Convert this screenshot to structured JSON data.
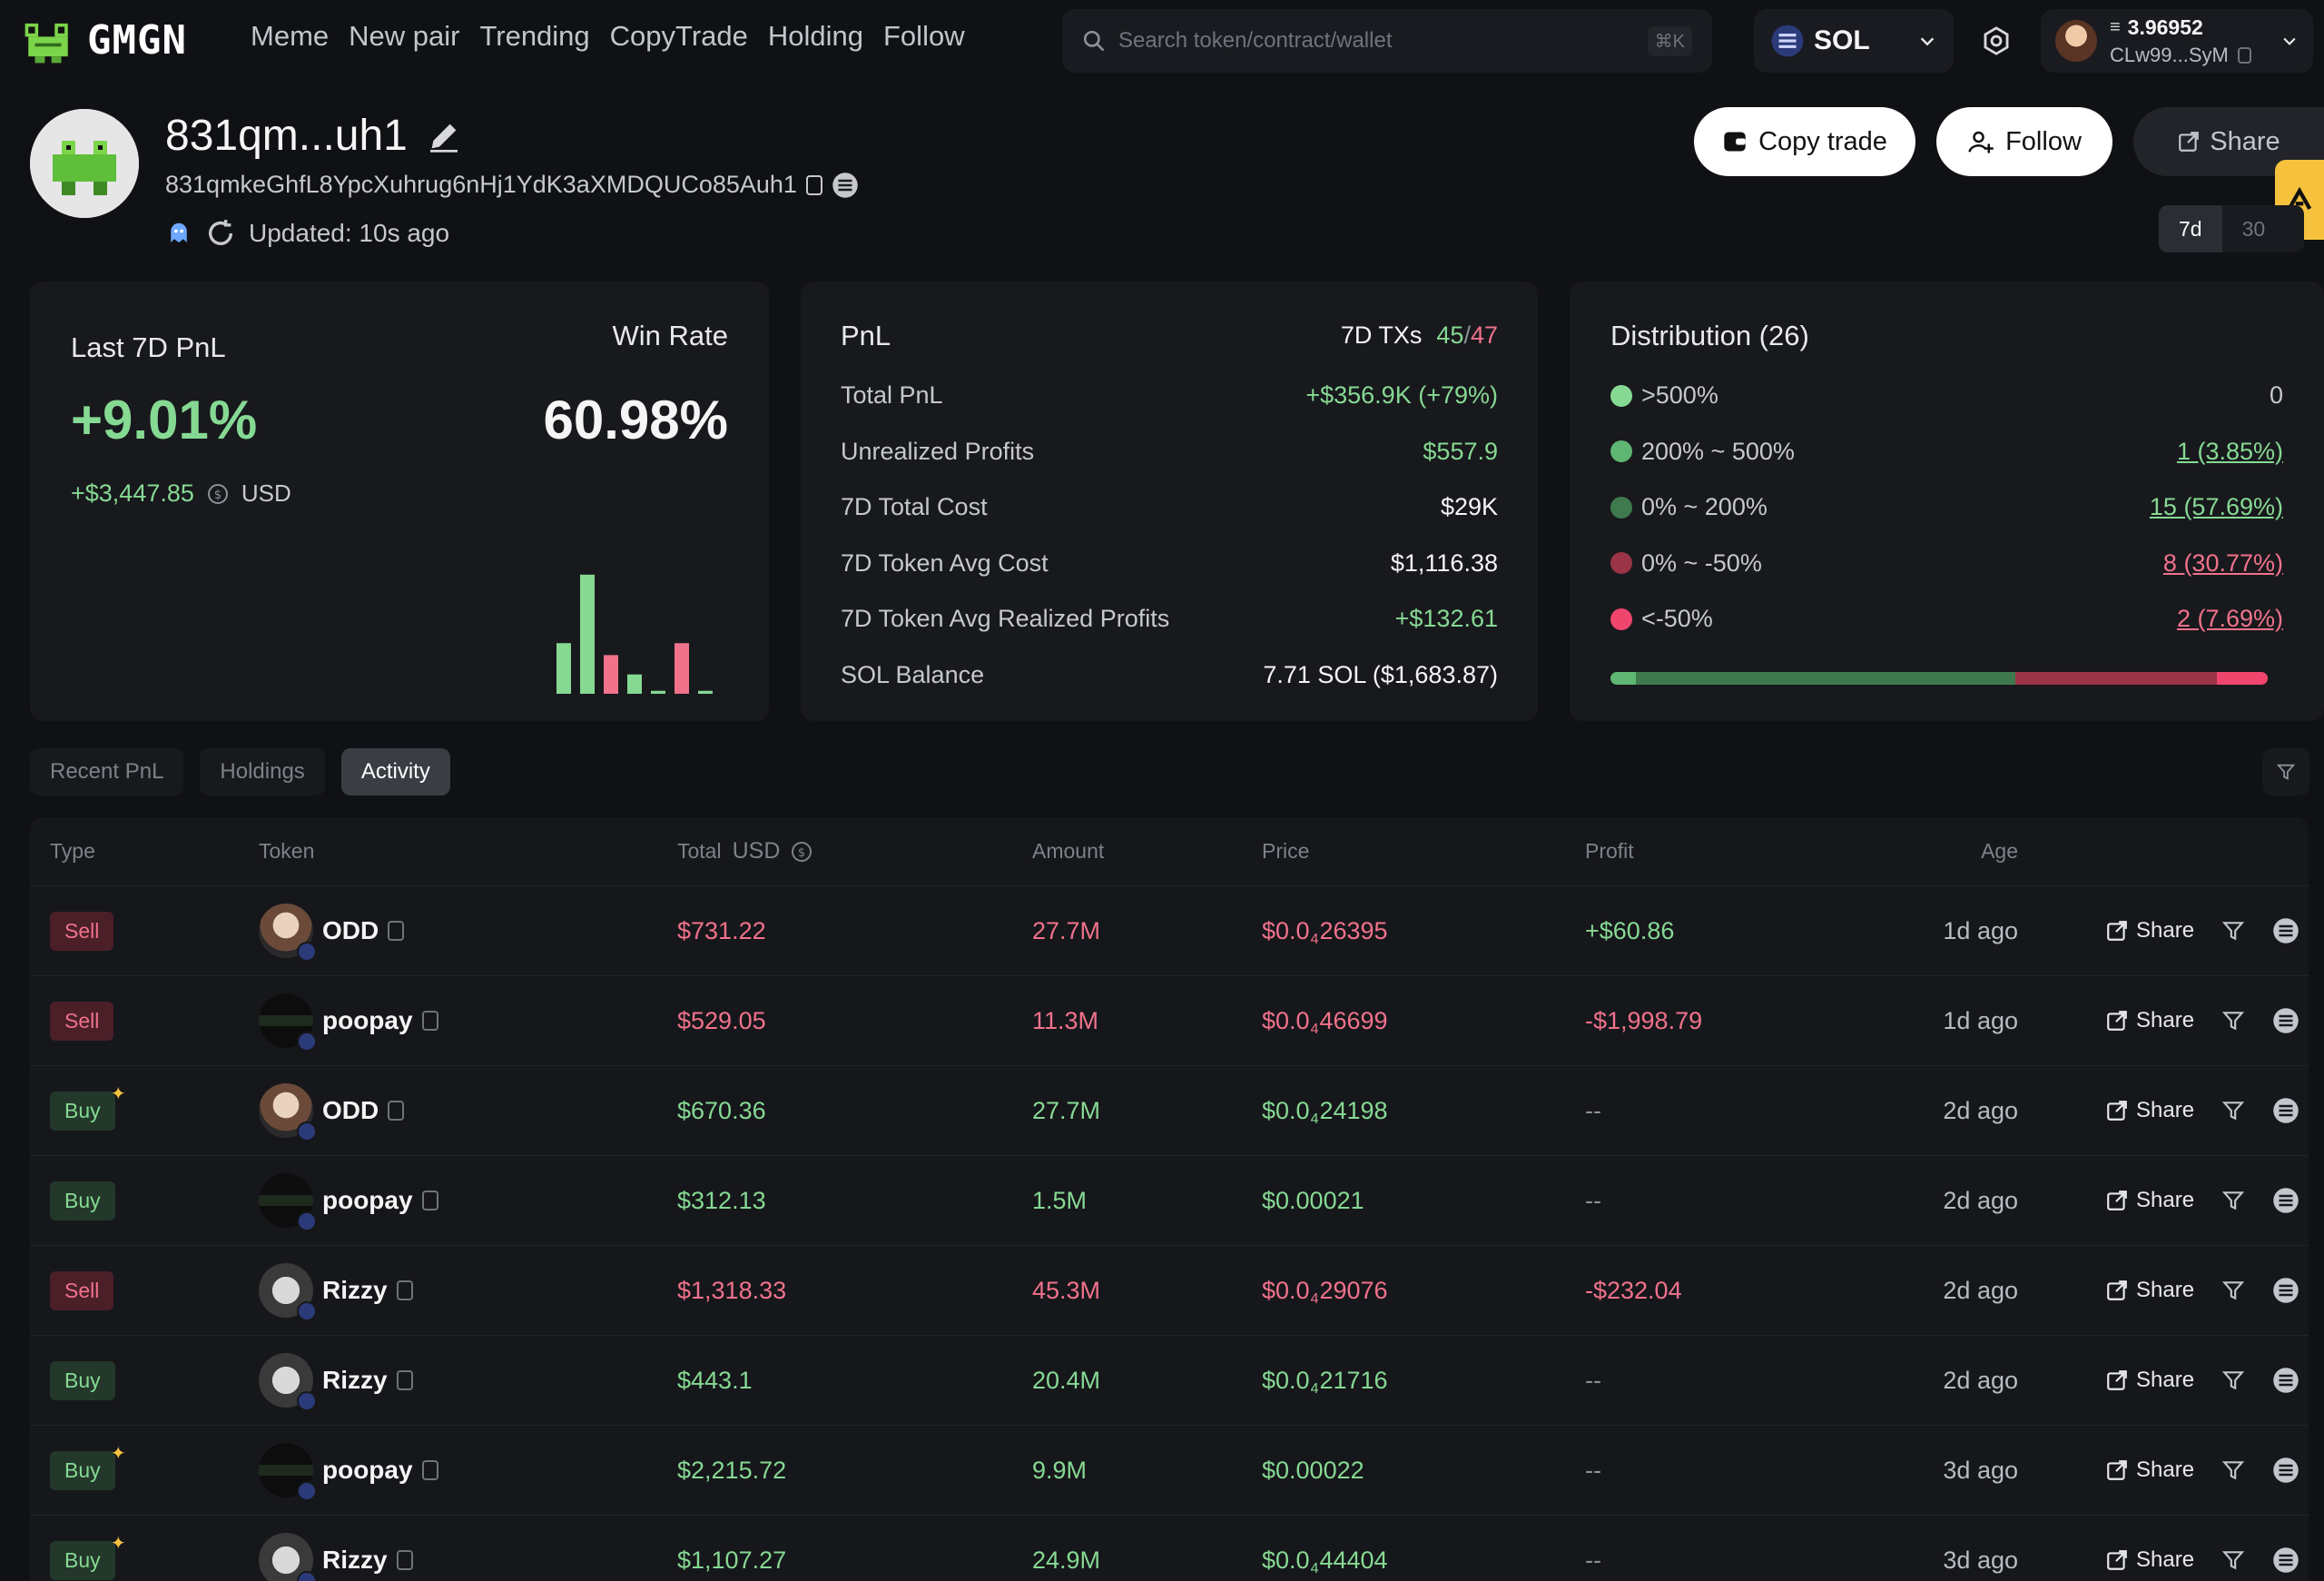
{
  "nav": {
    "logo": "GMGN",
    "links": [
      "Meme",
      "New pair",
      "Trending",
      "CopyTrade",
      "Holding",
      "Follow"
    ],
    "search_placeholder": "Search token/contract/wallet",
    "search_shortcut": "⌘K",
    "chain": "SOL",
    "wallet_balance": "3.96952",
    "wallet_address": "CLw99...SyM"
  },
  "profile": {
    "name": "831qm...uh1",
    "address": "831qmkeGhfL8YpcXuhrug6nHj1YdK3aXMDQUCo85Auh1",
    "updated": "Updated: 10s ago",
    "copy_trade": "Copy trade",
    "follow": "Follow",
    "share": "Share",
    "period_on": "7d",
    "period_off": "30"
  },
  "pnl7": {
    "title": "Last 7D PnL",
    "pct": "+9.01%",
    "usd": "+$3,447.85",
    "unit": "USD",
    "win_rate_label": "Win Rate",
    "win_rate": "60.98%",
    "bars": [
      {
        "value": 0.34,
        "color": "#86d993"
      },
      {
        "value": 0.8,
        "color": "#86d993"
      },
      {
        "value": 0.26,
        "color": "#f0728b"
      },
      {
        "value": 0.13,
        "color": "#86d993"
      },
      {
        "value": 0.02,
        "color": "#86d993"
      },
      {
        "value": 0.34,
        "color": "#f0728b"
      },
      {
        "value": 0.02,
        "color": "#86d993"
      }
    ]
  },
  "pnl": {
    "title": "PnL",
    "txs_label": "7D TXs",
    "txs_win": "45",
    "txs_loss": "47",
    "rows": [
      {
        "label": "Total PnL",
        "value": "+$356.9K (+79%)",
        "tone": "green"
      },
      {
        "label": "Unrealized Profits",
        "value": "$557.9",
        "tone": "green"
      },
      {
        "label": "7D Total Cost",
        "value": "$29K",
        "tone": "white"
      },
      {
        "label": "7D Token Avg Cost",
        "value": "$1,116.38",
        "tone": "white"
      },
      {
        "label": "7D Token Avg Realized Profits",
        "value": "+$132.61",
        "tone": "green"
      },
      {
        "label": "SOL Balance",
        "value": "7.71 SOL ($1,683.87)",
        "tone": "white"
      }
    ]
  },
  "dist": {
    "title": "Distribution (26)",
    "rows": [
      {
        "label": ">500%",
        "value": "0",
        "dot": "#86d993",
        "tone": "white",
        "link": false
      },
      {
        "label": "200% ~ 500%",
        "value": "1 (3.85%)",
        "dot": "#5fb572",
        "tone": "green",
        "link": true
      },
      {
        "label": "0% ~ 200%",
        "value": "15 (57.69%)",
        "dot": "#3f7a4e",
        "tone": "green",
        "link": true
      },
      {
        "label": "0% ~ -50%",
        "value": "8 (30.77%)",
        "dot": "#9b3447",
        "tone": "red",
        "link": true
      },
      {
        "label": "<-50%",
        "value": "2 (7.69%)",
        "dot": "#f0466d",
        "tone": "red",
        "link": true
      }
    ],
    "bar_segments": [
      {
        "share": 0.0385,
        "color": "#5fb572"
      },
      {
        "share": 0.5769,
        "color": "#3f7a4e"
      },
      {
        "share": 0.3077,
        "color": "#9b3447"
      },
      {
        "share": 0.0769,
        "color": "#f0466d"
      }
    ]
  },
  "tabs": [
    "Recent PnL",
    "Holdings",
    "Activity"
  ],
  "table": {
    "headers": {
      "type": "Type",
      "token": "Token",
      "total": "Total",
      "total_unit": "USD",
      "amount": "Amount",
      "price": "Price",
      "profit": "Profit",
      "age": "Age"
    },
    "share_label": "Share",
    "rows": [
      {
        "type": "Sell",
        "spark": false,
        "token": "ODD",
        "img": "odd",
        "total": "$731.22",
        "amount": "27.7M",
        "price_pre": "$0.0",
        "price_sub": "4",
        "price_post": "26395",
        "profit": "+$60.86",
        "profit_tone": "green",
        "age": "1d ago"
      },
      {
        "type": "Sell",
        "spark": false,
        "token": "poopay",
        "img": "poopay",
        "total": "$529.05",
        "amount": "11.3M",
        "price_pre": "$0.0",
        "price_sub": "4",
        "price_post": "46699",
        "profit": "-$1,998.79",
        "profit_tone": "red",
        "age": "1d ago"
      },
      {
        "type": "Buy",
        "spark": true,
        "token": "ODD",
        "img": "odd",
        "total": "$670.36",
        "amount": "27.7M",
        "price_pre": "$0.0",
        "price_sub": "4",
        "price_post": "24198",
        "profit": "--",
        "profit_tone": "dim",
        "age": "2d ago"
      },
      {
        "type": "Buy",
        "spark": false,
        "token": "poopay",
        "img": "poopay",
        "total": "$312.13",
        "amount": "1.5M",
        "price_pre": "$0.00021",
        "price_sub": "",
        "price_post": "",
        "profit": "--",
        "profit_tone": "dim",
        "age": "2d ago"
      },
      {
        "type": "Sell",
        "spark": false,
        "token": "Rizzy",
        "img": "rizzy",
        "total": "$1,318.33",
        "amount": "45.3M",
        "price_pre": "$0.0",
        "price_sub": "4",
        "price_post": "29076",
        "profit": "-$232.04",
        "profit_tone": "red",
        "age": "2d ago"
      },
      {
        "type": "Buy",
        "spark": false,
        "token": "Rizzy",
        "img": "rizzy",
        "total": "$443.1",
        "amount": "20.4M",
        "price_pre": "$0.0",
        "price_sub": "4",
        "price_post": "21716",
        "profit": "--",
        "profit_tone": "dim",
        "age": "2d ago"
      },
      {
        "type": "Buy",
        "spark": true,
        "token": "poopay",
        "img": "poopay",
        "total": "$2,215.72",
        "amount": "9.9M",
        "price_pre": "$0.00022",
        "price_sub": "",
        "price_post": "",
        "profit": "--",
        "profit_tone": "dim",
        "age": "3d ago"
      },
      {
        "type": "Buy",
        "spark": true,
        "token": "Rizzy",
        "img": "rizzy",
        "total": "$1,107.27",
        "amount": "24.9M",
        "price_pre": "$0.0",
        "price_sub": "4",
        "price_post": "44404",
        "profit": "--",
        "profit_tone": "dim",
        "age": "3d ago"
      }
    ]
  }
}
